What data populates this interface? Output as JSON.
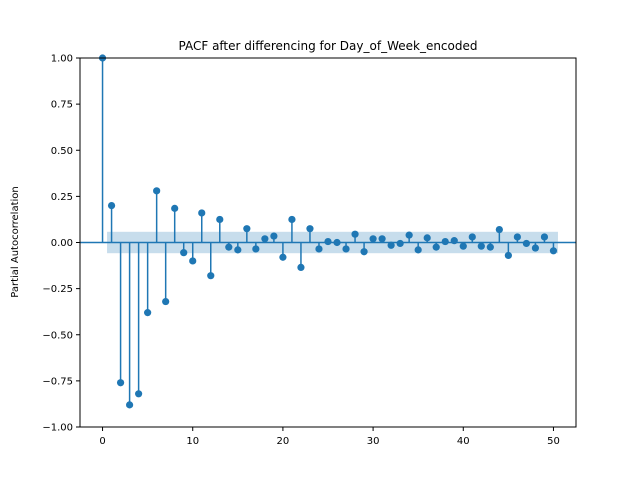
{
  "chart_data": {
    "type": "stem",
    "title": "PACF after differencing for Day_of_Week_encoded",
    "xlabel": "",
    "ylabel": "Partial Autocorrelation",
    "xlim": [
      -2.5,
      52.5
    ],
    "ylim": [
      -1.0,
      1.0
    ],
    "xticks": [
      0,
      10,
      20,
      30,
      40,
      50
    ],
    "yticks": [
      -1.0,
      -0.75,
      -0.5,
      -0.25,
      0.0,
      0.25,
      0.5,
      0.75,
      1.0
    ],
    "ytick_labels": [
      "−1.00",
      "−0.75",
      "−0.50",
      "−0.25",
      "0.00",
      "0.25",
      "0.50",
      "0.75",
      "1.00"
    ],
    "xtick_labels": [
      "0",
      "10",
      "20",
      "30",
      "40",
      "50"
    ],
    "confidence_band": {
      "from_lag": 0.5,
      "to_lag": 50.5,
      "lower": -0.058,
      "upper": 0.058
    },
    "lags": [
      0,
      1,
      2,
      3,
      4,
      5,
      6,
      7,
      8,
      9,
      10,
      11,
      12,
      13,
      14,
      15,
      16,
      17,
      18,
      19,
      20,
      21,
      22,
      23,
      24,
      25,
      26,
      27,
      28,
      29,
      30,
      31,
      32,
      33,
      34,
      35,
      36,
      37,
      38,
      39,
      40,
      41,
      42,
      43,
      44,
      45,
      46,
      47,
      48,
      49,
      50
    ],
    "values": [
      1.0,
      0.2,
      -0.76,
      -0.88,
      -0.82,
      -0.38,
      0.28,
      -0.32,
      0.185,
      -0.055,
      -0.1,
      0.16,
      -0.18,
      0.125,
      -0.025,
      -0.04,
      0.075,
      -0.035,
      0.02,
      0.035,
      -0.08,
      0.125,
      -0.135,
      0.075,
      -0.035,
      0.005,
      0.0,
      -0.035,
      0.045,
      -0.05,
      0.02,
      0.02,
      -0.015,
      -0.005,
      0.04,
      -0.04,
      0.025,
      -0.025,
      0.005,
      0.01,
      -0.02,
      0.03,
      -0.02,
      -0.025,
      0.07,
      -0.07,
      0.03,
      -0.005,
      -0.03,
      0.03,
      -0.045
    ],
    "colors": {
      "stem": "#1f77b4",
      "band": "#1f77b4",
      "axis": "#000000"
    },
    "grid": false,
    "legend": "none"
  }
}
